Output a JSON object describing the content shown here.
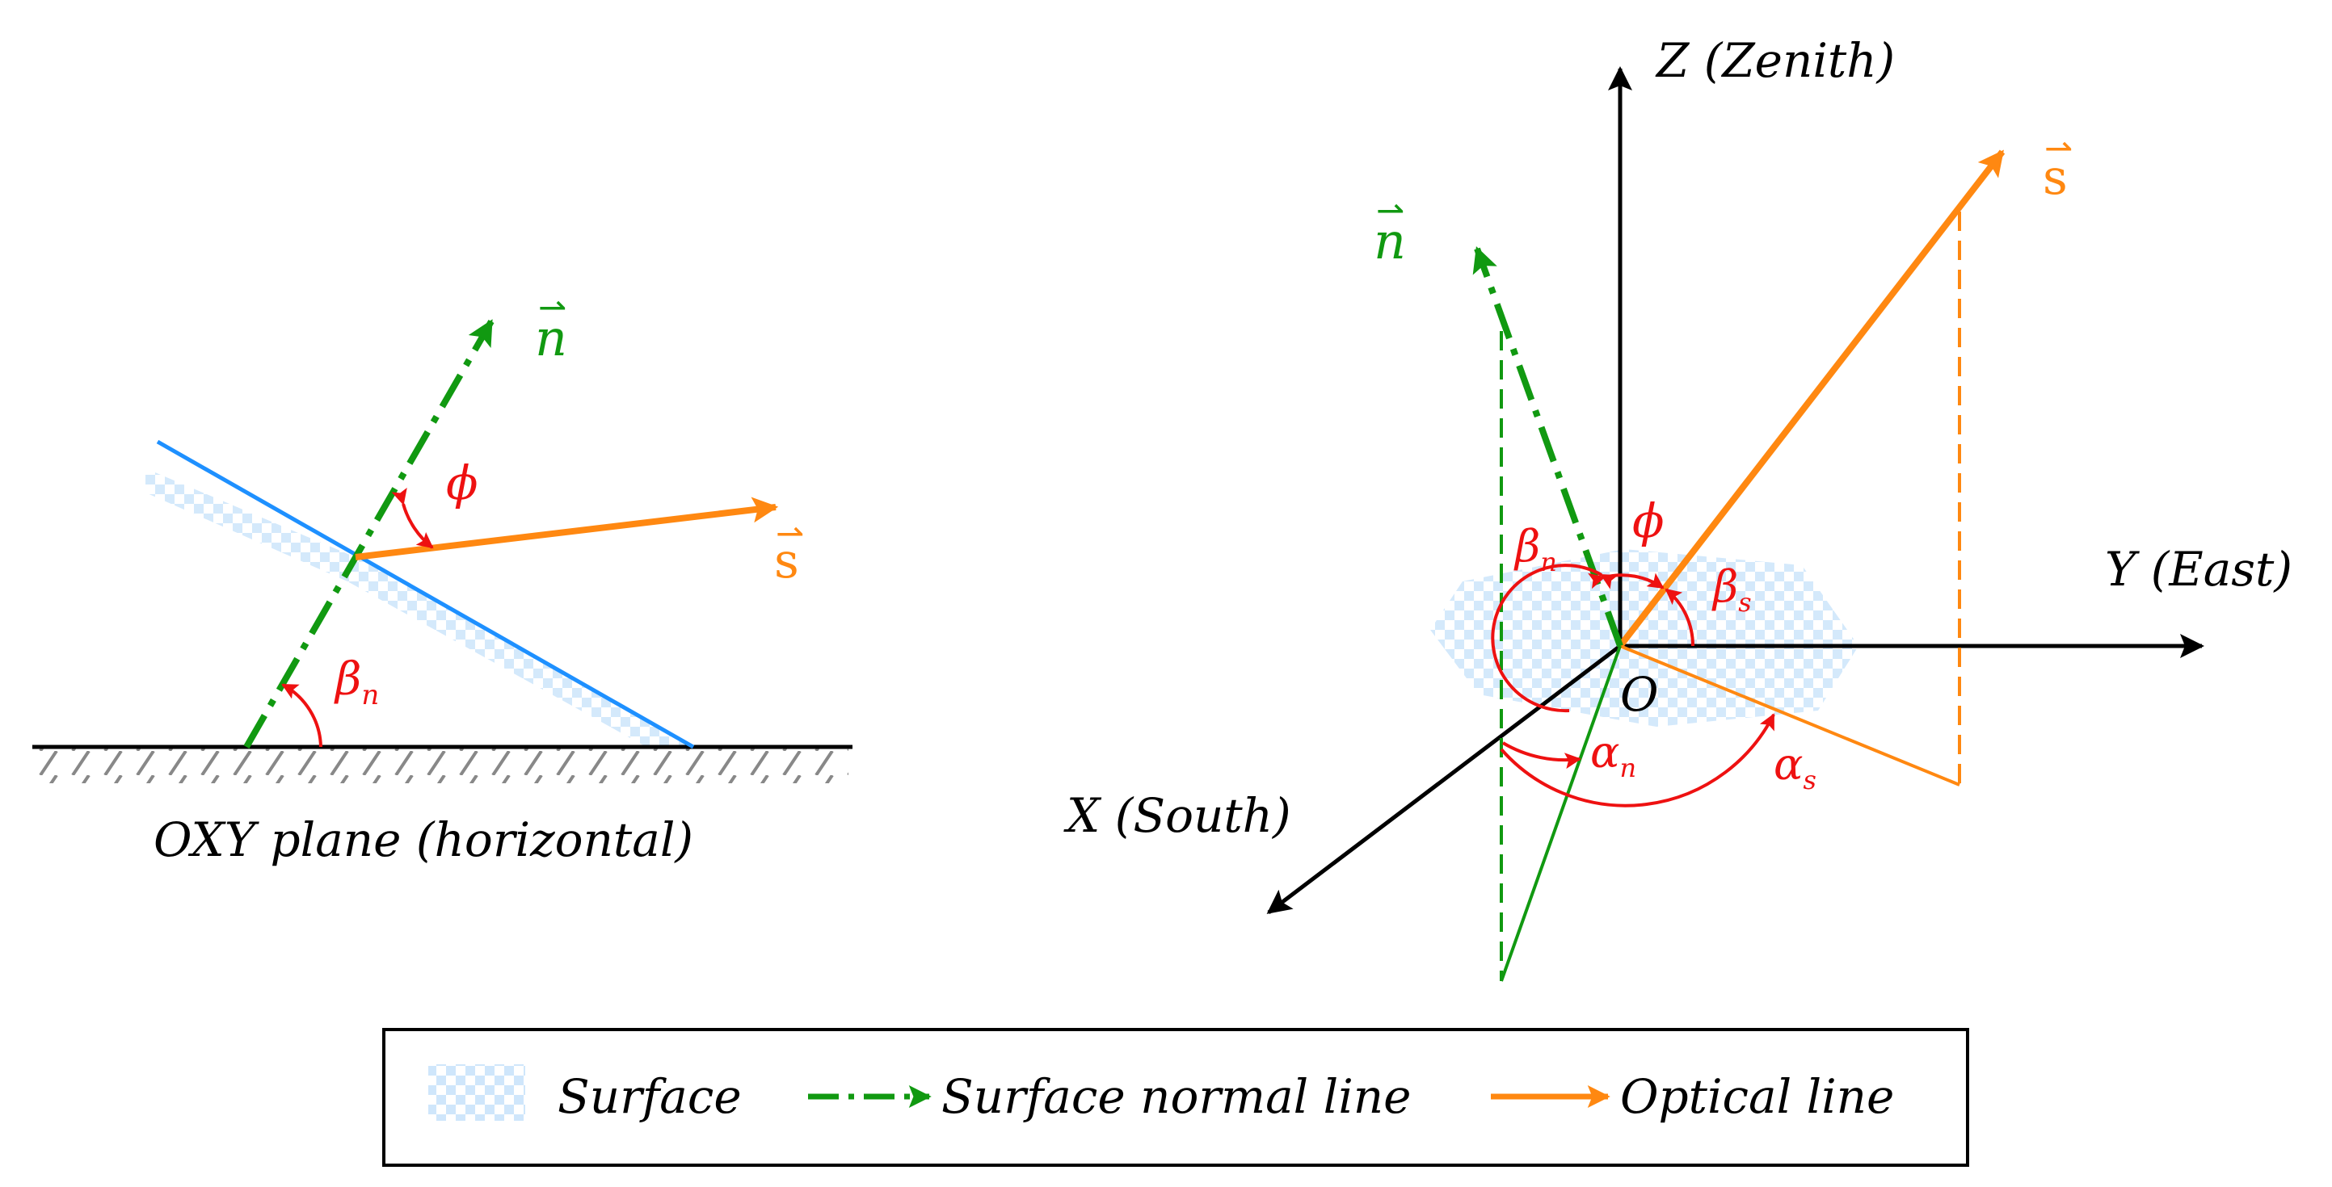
{
  "left_panel": {
    "normal_label": "n",
    "sun_label": "s",
    "phi_label": "ϕ",
    "beta_n_label": "β",
    "beta_n_sub": "n",
    "plane_caption": "OXY plane (horizontal)"
  },
  "right_panel": {
    "z_axis_label": "Z (Zenith)",
    "y_axis_label": "Y (East)",
    "x_axis_label": "X (South)",
    "origin_label": "O",
    "normal_label": "n",
    "sun_label": "s",
    "phi_label": "ϕ",
    "beta_n": "β",
    "beta_n_sub": "n",
    "beta_s": "β",
    "beta_s_sub": "s",
    "alpha_n": "α",
    "alpha_n_sub": "n",
    "alpha_s": "α",
    "alpha_s_sub": "s"
  },
  "legend": {
    "surface": "Surface",
    "normal_line": "Surface normal line",
    "optical_line": "Optical line"
  },
  "colors": {
    "surface": "#1e90ff",
    "surface_fill": "#cfe6fb",
    "normal": "#119911",
    "optical": "#ff8811",
    "angle": "#ee1111",
    "axis": "#000000"
  }
}
